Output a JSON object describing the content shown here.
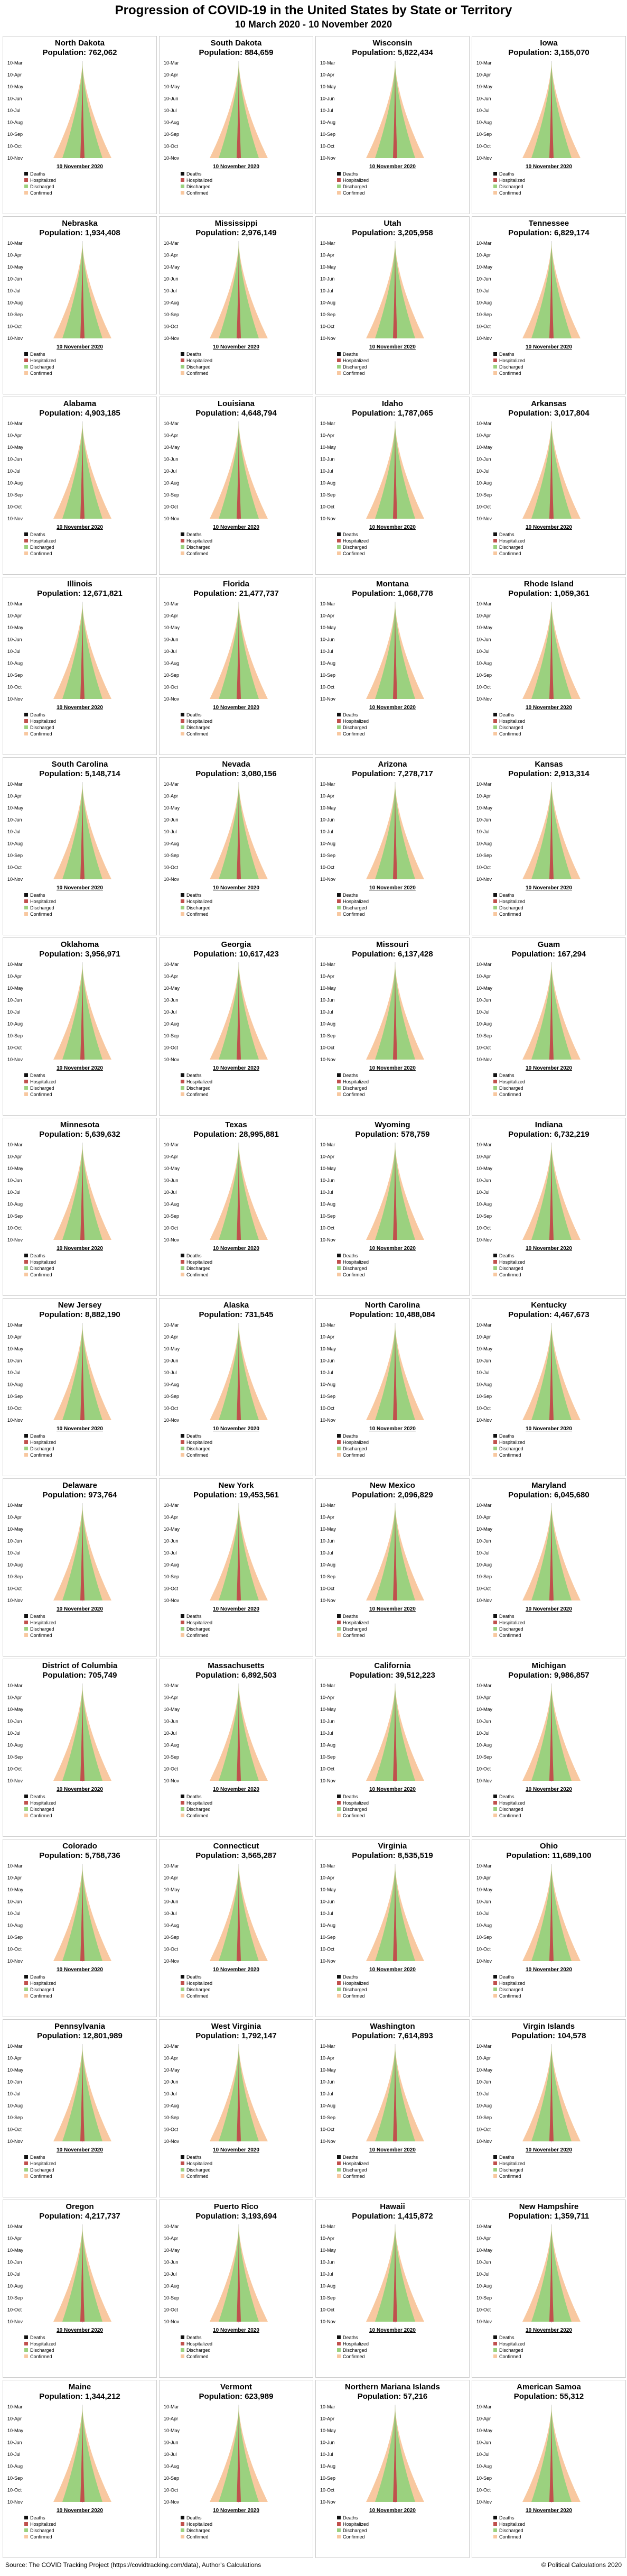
{
  "title": "Progression of COVID-19 in the United States by State or Territory",
  "subtitle": "10 March 2020 - 10 November 2020",
  "date_labels": [
    "10-Mar",
    "10-Apr",
    "10-May",
    "10-Jun",
    "10-Jul",
    "10-Aug",
    "10-Sep",
    "10-Oct",
    "10-Nov"
  ],
  "end_label": "10 November 2020",
  "population_label": "Population:",
  "legend": [
    {
      "name": "Deaths",
      "color": "#111111"
    },
    {
      "name": "Hospitalized",
      "color": "#c0504d"
    },
    {
      "name": "Discharged",
      "color": "#9bd17f"
    },
    {
      "name": "Confirmed",
      "color": "#f8c8a0"
    }
  ],
  "panels": [
    {
      "name": "North Dakota",
      "population": "762,062"
    },
    {
      "name": "South Dakota",
      "population": "884,659"
    },
    {
      "name": "Wisconsin",
      "population": "5,822,434"
    },
    {
      "name": "Iowa",
      "population": "3,155,070"
    },
    {
      "name": "Nebraska",
      "population": "1,934,408"
    },
    {
      "name": "Mississippi",
      "population": "2,976,149"
    },
    {
      "name": "Utah",
      "population": "3,205,958"
    },
    {
      "name": "Tennessee",
      "population": "6,829,174"
    },
    {
      "name": "Alabama",
      "population": "4,903,185"
    },
    {
      "name": "Louisiana",
      "population": "4,648,794"
    },
    {
      "name": "Idaho",
      "population": "1,787,065"
    },
    {
      "name": "Arkansas",
      "population": "3,017,804"
    },
    {
      "name": "Illinois",
      "population": "12,671,821"
    },
    {
      "name": "Florida",
      "population": "21,477,737"
    },
    {
      "name": "Montana",
      "population": "1,068,778"
    },
    {
      "name": "Rhode Island",
      "population": "1,059,361"
    },
    {
      "name": "South Carolina",
      "population": "5,148,714"
    },
    {
      "name": "Nevada",
      "population": "3,080,156"
    },
    {
      "name": "Arizona",
      "population": "7,278,717"
    },
    {
      "name": "Kansas",
      "population": "2,913,314"
    },
    {
      "name": "Oklahoma",
      "population": "3,956,971"
    },
    {
      "name": "Georgia",
      "population": "10,617,423"
    },
    {
      "name": "Missouri",
      "population": "6,137,428"
    },
    {
      "name": "Guam",
      "population": "167,294"
    },
    {
      "name": "Minnesota",
      "population": "5,639,632"
    },
    {
      "name": "Texas",
      "population": "28,995,881"
    },
    {
      "name": "Wyoming",
      "population": "578,759"
    },
    {
      "name": "Indiana",
      "population": "6,732,219"
    },
    {
      "name": "New Jersey",
      "population": "8,882,190"
    },
    {
      "name": "Alaska",
      "population": "731,545"
    },
    {
      "name": "North Carolina",
      "population": "10,488,084"
    },
    {
      "name": "Kentucky",
      "population": "4,467,673"
    },
    {
      "name": "Delaware",
      "population": "973,764"
    },
    {
      "name": "New York",
      "population": "19,453,561"
    },
    {
      "name": "New Mexico",
      "population": "2,096,829"
    },
    {
      "name": "Maryland",
      "population": "6,045,680"
    },
    {
      "name": "District of Columbia",
      "population": "705,749"
    },
    {
      "name": "Massachusetts",
      "population": "6,892,503"
    },
    {
      "name": "California",
      "population": "39,512,223"
    },
    {
      "name": "Michigan",
      "population": "9,986,857"
    },
    {
      "name": "Colorado",
      "population": "5,758,736"
    },
    {
      "name": "Connecticut",
      "population": "3,565,287"
    },
    {
      "name": "Virginia",
      "population": "8,535,519"
    },
    {
      "name": "Ohio",
      "population": "11,689,100"
    },
    {
      "name": "Pennsylvania",
      "population": "12,801,989"
    },
    {
      "name": "West Virginia",
      "population": "1,792,147"
    },
    {
      "name": "Washington",
      "population": "7,614,893"
    },
    {
      "name": "Virgin Islands",
      "population": "104,578"
    },
    {
      "name": "Oregon",
      "population": "4,217,737"
    },
    {
      "name": "Puerto Rico",
      "population": "3,193,694"
    },
    {
      "name": "Hawaii",
      "population": "1,415,872"
    },
    {
      "name": "New Hampshire",
      "population": "1,359,711"
    },
    {
      "name": "Maine",
      "population": "1,344,212"
    },
    {
      "name": "Vermont",
      "population": "623,989"
    },
    {
      "name": "Northern Mariana Islands",
      "population": "57,216"
    },
    {
      "name": "American Samoa",
      "population": "55,312"
    }
  ],
  "source": "Source: The COVID Tracking Project (https://covidtracking.com/data), Author's Calculations",
  "copyright": "© Political Calculations 2020"
}
